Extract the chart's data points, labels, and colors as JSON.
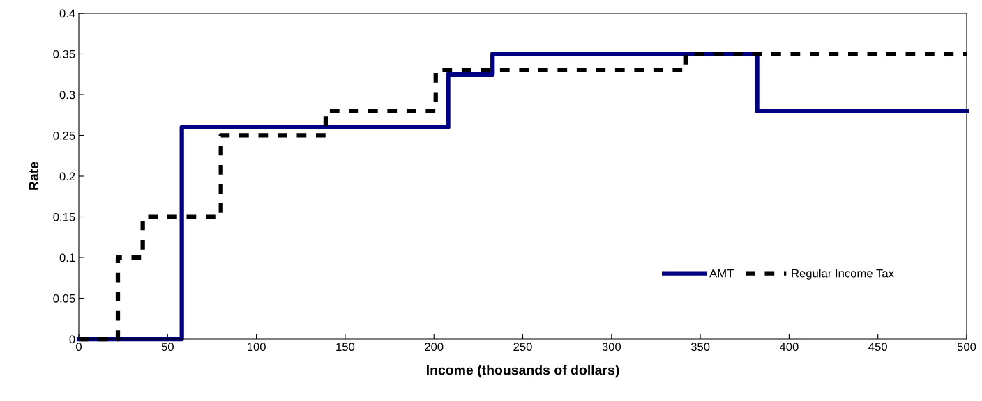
{
  "chart_data": {
    "type": "step",
    "xlabel": "Income (thousands of dollars)",
    "ylabel": "Rate",
    "xlim": [
      0,
      500
    ],
    "xticks": [
      0,
      50,
      100,
      150,
      200,
      250,
      300,
      350,
      400,
      450,
      500
    ],
    "ylim": [
      0,
      0.4
    ],
    "yticks": [
      0,
      0.05,
      0.1,
      0.15,
      0.2,
      0.25,
      0.3,
      0.35,
      0.4
    ],
    "grid": false,
    "legend": "bottom right",
    "series": [
      {
        "name": "AMT",
        "color": "#000080",
        "line_style": "solid",
        "x": [
          0,
          58,
          208,
          233,
          382,
          500
        ],
        "values": [
          0,
          0.26,
          0.325,
          0.35,
          0.28,
          0.28
        ]
      },
      {
        "name": "Regular Income Tax",
        "color": "#000000",
        "line_style": "dashed",
        "x": [
          0,
          22,
          36,
          80,
          139,
          201,
          342,
          500
        ],
        "values": [
          0,
          0.1,
          0.15,
          0.25,
          0.28,
          0.33,
          0.35,
          0.35
        ]
      }
    ]
  }
}
